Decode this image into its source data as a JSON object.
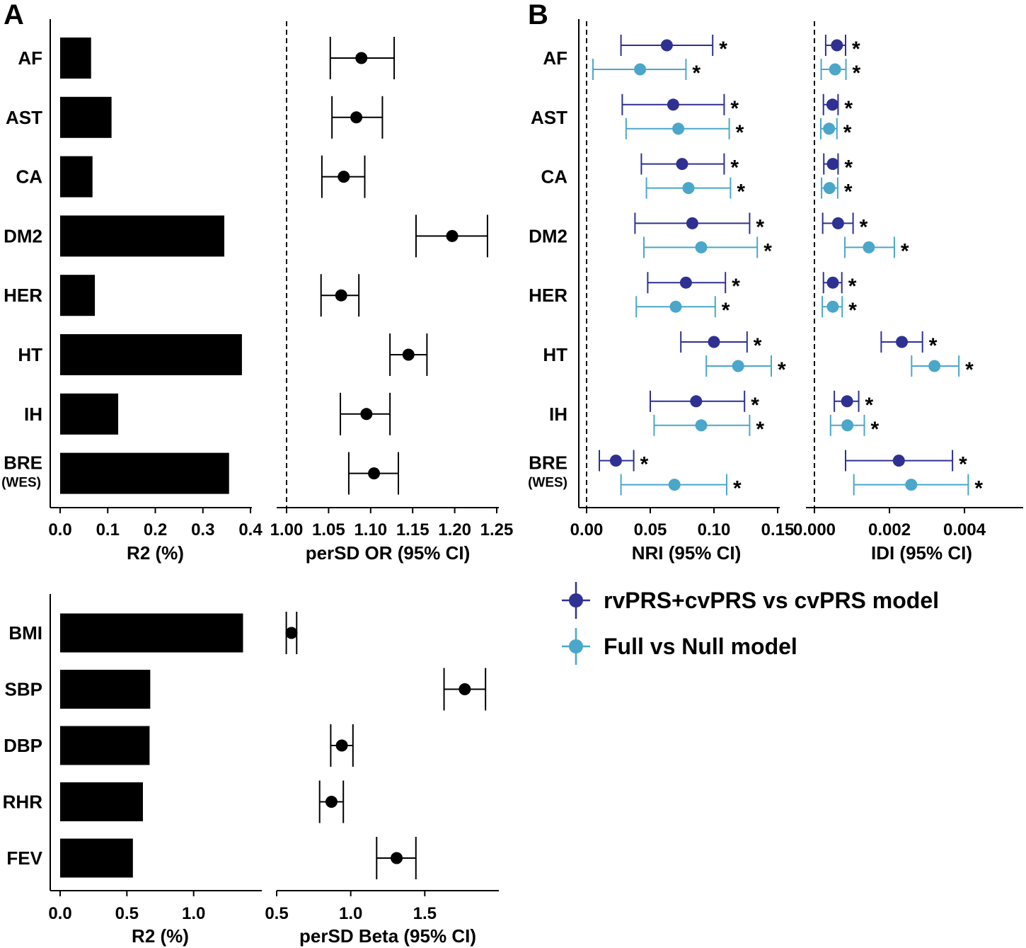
{
  "figure": {
    "panel_a_label": "A",
    "panel_b_label": "B",
    "significance_mark": "*",
    "colors": {
      "black": "#000000",
      "dark_blue": "#2e3192",
      "light_blue": "#4aa7c9"
    }
  },
  "chart_data": [
    {
      "id": "binary_r2",
      "type": "bar",
      "orientation": "horizontal",
      "categories": [
        "AF",
        "AST",
        "CA",
        "DM2",
        "HER",
        "HT",
        "IH",
        "BRE"
      ],
      "category_sublabels": {
        "BRE": "(WES)"
      },
      "values": [
        0.065,
        0.108,
        0.068,
        0.345,
        0.073,
        0.382,
        0.122,
        0.355
      ],
      "xlabel": "R2 (%)",
      "xlim": [
        0.0,
        0.4
      ],
      "xticks": [
        0.0,
        0.1,
        0.2,
        0.3,
        0.4
      ],
      "xtick_labels": [
        "0.0",
        "0.1",
        "0.2",
        "0.3",
        "0.4"
      ]
    },
    {
      "id": "binary_or",
      "type": "scatter",
      "subtype": "forest",
      "categories": [
        "AF",
        "AST",
        "CA",
        "DM2",
        "HER",
        "HT",
        "IH",
        "BRE"
      ],
      "estimate": [
        1.089,
        1.083,
        1.068,
        1.197,
        1.065,
        1.145,
        1.095,
        1.104
      ],
      "lower": [
        1.052,
        1.054,
        1.042,
        1.154,
        1.041,
        1.123,
        1.064,
        1.074
      ],
      "upper": [
        1.128,
        1.114,
        1.093,
        1.239,
        1.086,
        1.167,
        1.123,
        1.133
      ],
      "reference_line": 1.0,
      "xlabel": "perSD OR (95% CI)",
      "xlim": [
        1.0,
        1.25
      ],
      "xticks": [
        1.0,
        1.05,
        1.1,
        1.15,
        1.2,
        1.25
      ],
      "xtick_labels": [
        "1.00",
        "1.05",
        "1.10",
        "1.15",
        "1.20",
        "1.25"
      ]
    },
    {
      "id": "nri",
      "type": "scatter",
      "subtype": "forest",
      "categories": [
        "AF",
        "AST",
        "CA",
        "DM2",
        "HER",
        "HT",
        "IH",
        "BRE"
      ],
      "category_sublabels": {
        "BRE": "(WES)"
      },
      "series": [
        {
          "name": "rvPRS+cvPRS vs cvPRS model",
          "color": "#2e3192",
          "estimate": [
            0.063,
            0.068,
            0.075,
            0.083,
            0.078,
            0.1,
            0.086,
            0.023
          ],
          "lower": [
            0.027,
            0.028,
            0.043,
            0.038,
            0.048,
            0.074,
            0.05,
            0.01
          ],
          "upper": [
            0.099,
            0.108,
            0.108,
            0.128,
            0.109,
            0.126,
            0.124,
            0.037
          ],
          "significant": [
            true,
            true,
            true,
            true,
            true,
            true,
            true,
            true
          ]
        },
        {
          "name": "Full vs Null model",
          "color": "#4aa7c9",
          "estimate": [
            0.042,
            0.072,
            0.08,
            0.09,
            0.07,
            0.119,
            0.09,
            0.069
          ],
          "lower": [
            0.005,
            0.031,
            0.047,
            0.045,
            0.039,
            0.094,
            0.053,
            0.027
          ],
          "upper": [
            0.078,
            0.112,
            0.113,
            0.134,
            0.101,
            0.145,
            0.128,
            0.11
          ],
          "significant": [
            true,
            true,
            true,
            true,
            true,
            true,
            true,
            true
          ]
        }
      ],
      "reference_line": 0.0,
      "xlabel": "NRI (95% CI)",
      "xlim": [
        0.0,
        0.15
      ],
      "xticks": [
        0.0,
        0.05,
        0.1,
        0.15
      ],
      "xtick_labels": [
        "0.00",
        "0.05",
        "0.10",
        "0.15"
      ]
    },
    {
      "id": "idi",
      "type": "scatter",
      "subtype": "forest",
      "categories": [
        "AF",
        "AST",
        "CA",
        "DM2",
        "HER",
        "HT",
        "IH",
        "BRE"
      ],
      "series": [
        {
          "name": "rvPRS+cvPRS vs cvPRS model",
          "color": "#2e3192",
          "estimate": [
            0.0006,
            0.00048,
            0.00049,
            0.00063,
            0.00049,
            0.00233,
            0.00087,
            0.00225
          ],
          "lower": [
            0.0003,
            0.00024,
            0.00025,
            0.00022,
            0.00024,
            0.00178,
            0.00053,
            0.00083
          ],
          "upper": [
            0.00083,
            0.00063,
            0.00063,
            0.00103,
            0.00073,
            0.00288,
            0.00118,
            0.00368
          ],
          "significant": [
            true,
            true,
            true,
            true,
            true,
            true,
            true,
            true
          ]
        },
        {
          "name": "Full vs Null model",
          "color": "#4aa7c9",
          "estimate": [
            0.00055,
            0.00039,
            0.0004,
            0.00145,
            0.00049,
            0.0032,
            0.00088,
            0.00258
          ],
          "lower": [
            0.00018,
            0.00017,
            0.00019,
            0.00081,
            0.00021,
            0.00259,
            0.00043,
            0.00105
          ],
          "upper": [
            0.00084,
            0.0006,
            0.00062,
            0.00213,
            0.00074,
            0.00385,
            0.00133,
            0.0041
          ],
          "significant": [
            true,
            true,
            true,
            true,
            true,
            true,
            true,
            true
          ]
        }
      ],
      "reference_line": 0.0,
      "xlabel": "IDI (95% CI)",
      "xlim": [
        0.0,
        0.0053
      ],
      "xticks": [
        0.0,
        0.002,
        0.004
      ],
      "xtick_labels": [
        "0.000",
        "0.002",
        "0.004"
      ]
    },
    {
      "id": "quant_r2",
      "type": "bar",
      "orientation": "horizontal",
      "categories": [
        "BMI",
        "SBP",
        "DBP",
        "RHR",
        "FEV"
      ],
      "values": [
        1.37,
        0.675,
        0.67,
        0.62,
        0.545
      ],
      "xlabel": "R2 (%)",
      "xlim": [
        0.0,
        1.5
      ],
      "xticks": [
        0.0,
        0.5,
        1.0
      ],
      "xtick_labels": [
        "0.0",
        "0.5",
        "1.0"
      ]
    },
    {
      "id": "quant_beta",
      "type": "scatter",
      "subtype": "forest",
      "categories": [
        "BMI",
        "SBP",
        "DBP",
        "RHR",
        "FEV"
      ],
      "estimate": [
        0.6,
        1.77,
        0.94,
        0.87,
        1.31
      ],
      "lower": [
        0.565,
        1.63,
        0.865,
        0.79,
        1.175
      ],
      "upper": [
        0.635,
        1.91,
        1.015,
        0.95,
        1.44
      ],
      "xlabel": "perSD Beta (95% CI)",
      "xlim": [
        0.5,
        2.0
      ],
      "xticks": [
        0.5,
        1.0,
        1.5
      ],
      "xtick_labels": [
        "0.5",
        "1.0",
        "1.5"
      ]
    }
  ],
  "legend": {
    "items": [
      {
        "label": "rvPRS+cvPRS vs cvPRS model",
        "color": "#2e3192"
      },
      {
        "label": "Full vs Null model",
        "color": "#4aa7c9"
      }
    ]
  }
}
